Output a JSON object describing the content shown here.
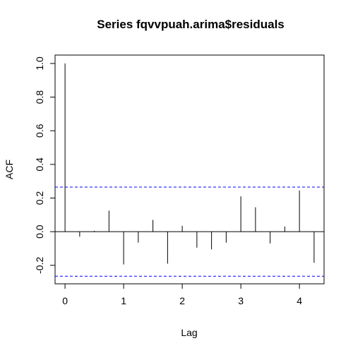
{
  "chart_data": {
    "type": "bar",
    "title": "Series  fqvvpuah.arima$residuals",
    "xlabel": "Lag",
    "ylabel": "ACF",
    "xlim": [
      -0.17,
      4.42
    ],
    "ylim": [
      -0.31,
      1.05
    ],
    "x_ticks": [
      "0",
      "1",
      "2",
      "3",
      "4"
    ],
    "y_ticks": [
      "-0.2",
      "0.0",
      "0.2",
      "0.4",
      "0.6",
      "0.8",
      "1.0"
    ],
    "lags": [
      0,
      0.25,
      0.5,
      0.75,
      1.0,
      1.25,
      1.5,
      1.75,
      2.0,
      2.25,
      2.5,
      2.75,
      3.0,
      3.25,
      3.5,
      3.75,
      4.0,
      4.25
    ],
    "acf": [
      1.0,
      -0.03,
      0.005,
      0.125,
      -0.195,
      -0.065,
      0.07,
      -0.19,
      0.035,
      -0.095,
      -0.105,
      -0.065,
      0.21,
      0.145,
      -0.07,
      0.03,
      0.245,
      -0.185
    ],
    "confidence_bounds": [
      0.265,
      -0.265
    ],
    "confidence_line_color": "#0000ff",
    "bar_color": "#000000",
    "grid": false
  }
}
